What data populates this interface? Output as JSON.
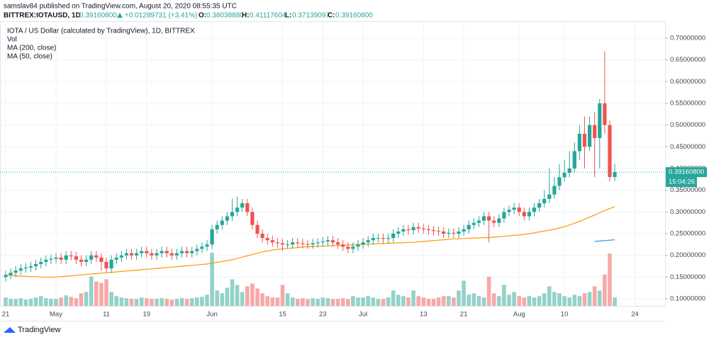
{
  "header": {
    "publisher": "samslav84 published on TradingView.com, August 20, 2020 08:55:35 UTC",
    "symbol": "BITTREX:IOTAUSD, 1D",
    "last": "0.39160800",
    "change": "+0.01289731 (+3.41%)",
    "o_label": "O:",
    "o": "0.38038880",
    "h_label": "H:",
    "h": "0.41117604",
    "l_label": "L:",
    "l": "0.37139097",
    "c_label": "C:",
    "c": "0.39160800"
  },
  "footer": {
    "brand": "TradingView"
  },
  "chart_data": {
    "type": "candlestick",
    "title": "IOTA / US Dollar (calculated by TradingView), 1D, BITTREX",
    "volume_label": "Vol",
    "last_label": "0.39160800",
    "last_value": 0.391608,
    "countdown": "15:04:26",
    "up_color": "#26a69a",
    "down_color": "#ef5350",
    "up_volume_color": "#93d2c9",
    "down_volume_color": "#f6a9a8",
    "grid": true,
    "categories": [
      "21",
      null,
      null,
      null,
      null,
      null,
      null,
      null,
      null,
      null,
      "May",
      null,
      null,
      null,
      null,
      null,
      null,
      null,
      null,
      null,
      "11",
      null,
      null,
      null,
      null,
      null,
      null,
      null,
      "19",
      null,
      null,
      null,
      null,
      null,
      null,
      null,
      null,
      null,
      null,
      null,
      null,
      "Jun",
      null,
      null,
      null,
      null,
      null,
      null,
      null,
      null,
      null,
      null,
      null,
      null,
      null,
      "15",
      null,
      null,
      null,
      null,
      null,
      null,
      null,
      "23",
      null,
      null,
      null,
      null,
      null,
      null,
      null,
      "Jul",
      null,
      null,
      null,
      null,
      null,
      null,
      null,
      null,
      null,
      null,
      null,
      "13",
      null,
      null,
      null,
      null,
      null,
      null,
      null,
      "21",
      null,
      null,
      null,
      null,
      null,
      null,
      null,
      null,
      null,
      null,
      "Aug",
      null,
      null,
      null,
      null,
      null,
      null,
      null,
      null,
      "10",
      null,
      null,
      null,
      null,
      null,
      null,
      null,
      null,
      null,
      null,
      null,
      null,
      null,
      "24",
      null,
      null,
      null,
      null,
      null
    ],
    "open": [
      0.15,
      0.155,
      0.16,
      0.165,
      0.17,
      0.172,
      0.175,
      0.18,
      0.185,
      0.19,
      0.192,
      0.195,
      0.19,
      0.2,
      0.198,
      0.19,
      0.185,
      0.19,
      0.2,
      0.195,
      0.185,
      0.17,
      0.19,
      0.195,
      0.2,
      0.205,
      0.2,
      0.205,
      0.21,
      0.205,
      0.2,
      0.205,
      0.21,
      0.205,
      0.2,
      0.205,
      0.21,
      0.205,
      0.21,
      0.215,
      0.22,
      0.225,
      0.26,
      0.27,
      0.28,
      0.29,
      0.3,
      0.31,
      0.32,
      0.3,
      0.27,
      0.25,
      0.24,
      0.235,
      0.23,
      0.228,
      0.225,
      0.225,
      0.23,
      0.228,
      0.226,
      0.225,
      0.228,
      0.23,
      0.232,
      0.235,
      0.23,
      0.225,
      0.22,
      0.215,
      0.22,
      0.225,
      0.23,
      0.235,
      0.24,
      0.24,
      0.238,
      0.24,
      0.25,
      0.255,
      0.26,
      0.258,
      0.265,
      0.262,
      0.26,
      0.258,
      0.256,
      0.255,
      0.25,
      0.252,
      0.25,
      0.255,
      0.26,
      0.27,
      0.275,
      0.28,
      0.29,
      0.28,
      0.275,
      0.285,
      0.3,
      0.305,
      0.31,
      0.3,
      0.29,
      0.3,
      0.31,
      0.32,
      0.33,
      0.34,
      0.36,
      0.38,
      0.39,
      0.4,
      0.44,
      0.48,
      0.45,
      0.5,
      0.47,
      0.55,
      0.5,
      0.3803888,
      null,
      null,
      null,
      null,
      null,
      null,
      null,
      null,
      null
    ],
    "high": [
      0.165,
      0.17,
      0.175,
      0.18,
      0.182,
      0.185,
      0.19,
      0.195,
      0.2,
      0.202,
      0.205,
      0.205,
      0.21,
      0.21,
      0.208,
      0.2,
      0.2,
      0.21,
      0.21,
      0.205,
      0.195,
      0.2,
      0.205,
      0.21,
      0.215,
      0.215,
      0.215,
      0.22,
      0.22,
      0.215,
      0.215,
      0.22,
      0.22,
      0.215,
      0.215,
      0.22,
      0.22,
      0.22,
      0.225,
      0.23,
      0.235,
      0.27,
      0.28,
      0.29,
      0.3,
      0.33,
      0.335,
      0.33,
      0.33,
      0.31,
      0.28,
      0.26,
      0.25,
      0.245,
      0.24,
      0.238,
      0.235,
      0.24,
      0.24,
      0.238,
      0.236,
      0.238,
      0.24,
      0.242,
      0.245,
      0.245,
      0.24,
      0.235,
      0.23,
      0.23,
      0.235,
      0.24,
      0.245,
      0.25,
      0.25,
      0.25,
      0.25,
      0.26,
      0.265,
      0.27,
      0.27,
      0.275,
      0.275,
      0.272,
      0.27,
      0.268,
      0.266,
      0.265,
      0.262,
      0.262,
      0.265,
      0.27,
      0.28,
      0.285,
      0.29,
      0.3,
      0.3,
      0.29,
      0.295,
      0.31,
      0.315,
      0.32,
      0.32,
      0.31,
      0.31,
      0.32,
      0.33,
      0.35,
      0.4,
      0.38,
      0.41,
      0.42,
      0.44,
      0.46,
      0.5,
      0.52,
      0.52,
      0.53,
      0.56,
      0.67,
      0.51,
      0.41117604,
      null,
      null,
      null,
      null,
      null,
      null,
      null,
      null,
      null
    ],
    "low": [
      0.14,
      0.145,
      0.15,
      0.155,
      0.16,
      0.162,
      0.165,
      0.17,
      0.175,
      0.18,
      0.182,
      0.18,
      0.18,
      0.188,
      0.18,
      0.175,
      0.175,
      0.18,
      0.185,
      0.165,
      0.16,
      0.16,
      0.18,
      0.185,
      0.19,
      0.19,
      0.19,
      0.195,
      0.195,
      0.19,
      0.19,
      0.195,
      0.195,
      0.19,
      0.19,
      0.195,
      0.195,
      0.195,
      0.2,
      0.205,
      0.21,
      0.215,
      0.25,
      0.26,
      0.27,
      0.28,
      0.29,
      0.3,
      0.29,
      0.26,
      0.24,
      0.23,
      0.225,
      0.22,
      0.218,
      0.21,
      0.215,
      0.215,
      0.218,
      0.216,
      0.215,
      0.215,
      0.218,
      0.22,
      0.222,
      0.22,
      0.215,
      0.21,
      0.205,
      0.205,
      0.21,
      0.215,
      0.22,
      0.225,
      0.23,
      0.228,
      0.228,
      0.23,
      0.24,
      0.245,
      0.248,
      0.248,
      0.252,
      0.25,
      0.248,
      0.246,
      0.245,
      0.24,
      0.24,
      0.24,
      0.24,
      0.245,
      0.25,
      0.26,
      0.265,
      0.27,
      0.23,
      0.265,
      0.265,
      0.275,
      0.29,
      0.295,
      0.29,
      0.28,
      0.28,
      0.29,
      0.3,
      0.31,
      0.32,
      0.33,
      0.35,
      0.37,
      0.38,
      0.39,
      0.42,
      0.4,
      0.44,
      0.38,
      0.4,
      0.48,
      0.37,
      0.37139097,
      null,
      null,
      null,
      null,
      null,
      null,
      null,
      null,
      null
    ],
    "close": [
      0.155,
      0.16,
      0.165,
      0.17,
      0.172,
      0.175,
      0.18,
      0.185,
      0.19,
      0.192,
      0.195,
      0.19,
      0.2,
      0.198,
      0.19,
      0.185,
      0.19,
      0.2,
      0.195,
      0.185,
      0.17,
      0.19,
      0.195,
      0.2,
      0.205,
      0.2,
      0.205,
      0.21,
      0.205,
      0.2,
      0.205,
      0.21,
      0.205,
      0.2,
      0.205,
      0.21,
      0.205,
      0.21,
      0.215,
      0.22,
      0.225,
      0.26,
      0.27,
      0.28,
      0.29,
      0.3,
      0.31,
      0.32,
      0.3,
      0.27,
      0.25,
      0.24,
      0.235,
      0.23,
      0.228,
      0.225,
      0.225,
      0.23,
      0.228,
      0.226,
      0.225,
      0.228,
      0.23,
      0.232,
      0.235,
      0.23,
      0.225,
      0.22,
      0.215,
      0.22,
      0.225,
      0.23,
      0.235,
      0.24,
      0.24,
      0.238,
      0.24,
      0.25,
      0.255,
      0.26,
      0.258,
      0.265,
      0.262,
      0.26,
      0.258,
      0.256,
      0.255,
      0.25,
      0.252,
      0.25,
      0.255,
      0.26,
      0.27,
      0.275,
      0.28,
      0.29,
      0.28,
      0.275,
      0.285,
      0.3,
      0.305,
      0.31,
      0.3,
      0.29,
      0.3,
      0.31,
      0.32,
      0.33,
      0.34,
      0.36,
      0.38,
      0.39,
      0.4,
      0.44,
      0.48,
      0.45,
      0.5,
      0.47,
      0.55,
      0.5,
      0.3803888,
      0.391608,
      null,
      null,
      null,
      null,
      null,
      null,
      null,
      null,
      null
    ],
    "volume": [
      12,
      10,
      10,
      11,
      9,
      10,
      12,
      14,
      11,
      10,
      10,
      12,
      15,
      13,
      11,
      18,
      20,
      42,
      35,
      33,
      38,
      20,
      14,
      12,
      11,
      10,
      10,
      12,
      11,
      10,
      10,
      11,
      10,
      9,
      10,
      11,
      10,
      11,
      12,
      13,
      16,
      76,
      22,
      18,
      26,
      38,
      30,
      20,
      28,
      32,
      25,
      18,
      14,
      12,
      12,
      30,
      18,
      12,
      10,
      11,
      10,
      11,
      10,
      12,
      11,
      10,
      10,
      11,
      10,
      14,
      12,
      12,
      14,
      12,
      10,
      10,
      12,
      22,
      16,
      14,
      12,
      22,
      14,
      12,
      10,
      10,
      12,
      14,
      14,
      12,
      22,
      36,
      16,
      18,
      14,
      12,
      42,
      18,
      14,
      30,
      16,
      20,
      14,
      12,
      14,
      12,
      14,
      18,
      28,
      20,
      18,
      14,
      12,
      16,
      14,
      18,
      20,
      28,
      22,
      45,
      75,
      12,
      null,
      null,
      null,
      null,
      null,
      null,
      null,
      null,
      null
    ],
    "series": [
      {
        "name": "MA (200, close)",
        "color": "#2196f3",
        "values": [
          null,
          null,
          null,
          null,
          null,
          null,
          null,
          null,
          null,
          null,
          null,
          null,
          null,
          null,
          null,
          null,
          null,
          null,
          null,
          null,
          null,
          null,
          null,
          null,
          null,
          null,
          null,
          null,
          null,
          null,
          null,
          null,
          null,
          null,
          null,
          null,
          null,
          null,
          null,
          null,
          null,
          null,
          null,
          null,
          null,
          null,
          null,
          null,
          null,
          null,
          null,
          null,
          null,
          null,
          null,
          null,
          null,
          null,
          null,
          null,
          null,
          null,
          null,
          null,
          null,
          null,
          null,
          null,
          null,
          null,
          null,
          null,
          null,
          null,
          null,
          null,
          null,
          null,
          null,
          null,
          null,
          null,
          null,
          null,
          null,
          null,
          null,
          null,
          null,
          null,
          null,
          null,
          null,
          null,
          null,
          null,
          null,
          null,
          null,
          null,
          null,
          null,
          null,
          null,
          null,
          null,
          null,
          null,
          null,
          null,
          null,
          null,
          null,
          null,
          null,
          null,
          null,
          0.232,
          0.233,
          0.234,
          0.235,
          0.236,
          null,
          null,
          null,
          null,
          null,
          null,
          null,
          null,
          null
        ]
      },
      {
        "name": "MA (50, close)",
        "color": "#ff9800",
        "values": [
          0.155,
          0.154,
          0.153,
          0.152,
          0.152,
          0.151,
          0.151,
          0.15,
          0.15,
          0.15,
          0.15,
          0.151,
          0.152,
          0.153,
          0.154,
          0.155,
          0.156,
          0.157,
          0.158,
          0.159,
          0.16,
          0.161,
          0.162,
          0.163,
          0.164,
          0.165,
          0.166,
          0.167,
          0.168,
          0.169,
          0.17,
          0.171,
          0.172,
          0.173,
          0.174,
          0.175,
          0.176,
          0.177,
          0.178,
          0.179,
          0.18,
          0.182,
          0.184,
          0.186,
          0.188,
          0.19,
          0.193,
          0.196,
          0.199,
          0.202,
          0.205,
          0.208,
          0.21,
          0.212,
          0.214,
          0.215,
          0.216,
          0.217,
          0.218,
          0.219,
          0.22,
          0.22,
          0.221,
          0.221,
          0.222,
          0.222,
          0.223,
          0.223,
          0.224,
          0.224,
          0.225,
          0.225,
          0.226,
          0.226,
          0.227,
          0.227,
          0.228,
          0.228,
          0.229,
          0.229,
          0.23,
          0.23,
          0.231,
          0.232,
          0.233,
          0.234,
          0.235,
          0.236,
          0.237,
          0.238,
          0.238,
          0.239,
          0.239,
          0.24,
          0.24,
          0.241,
          0.241,
          0.242,
          0.243,
          0.244,
          0.245,
          0.246,
          0.247,
          0.248,
          0.25,
          0.252,
          0.254,
          0.256,
          0.258,
          0.26,
          0.263,
          0.266,
          0.27,
          0.274,
          0.278,
          0.283,
          0.288,
          0.293,
          0.298,
          0.303,
          0.308,
          0.312,
          null,
          null,
          null,
          null,
          null,
          null,
          null,
          null,
          null
        ]
      }
    ],
    "ylim": [
      0.0837,
      0.739
    ],
    "yticks": [
      {
        "value": 0.1,
        "label": "0.10000000"
      },
      {
        "value": 0.15,
        "label": "0.15000000"
      },
      {
        "value": 0.2,
        "label": "0.20000000"
      },
      {
        "value": 0.25,
        "label": "0.25000000"
      },
      {
        "value": 0.3,
        "label": "0.30000000"
      },
      {
        "value": 0.35,
        "label": "0.35000000"
      },
      {
        "value": 0.4,
        "label": "0.40000000"
      },
      {
        "value": 0.45,
        "label": "0.45000000"
      },
      {
        "value": 0.5,
        "label": "0.50000000"
      },
      {
        "value": 0.55,
        "label": "0.55000000"
      },
      {
        "value": 0.6,
        "label": "0.60000000"
      },
      {
        "value": 0.65,
        "label": "0.65000000"
      },
      {
        "value": 0.7,
        "label": "0.70000000"
      }
    ]
  }
}
